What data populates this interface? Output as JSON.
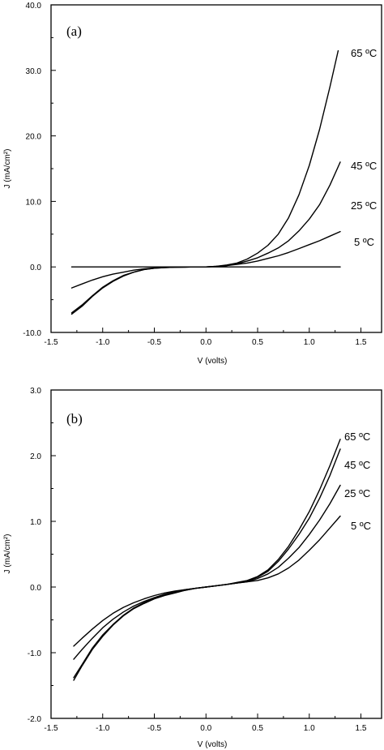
{
  "chart_data": [
    {
      "type": "line",
      "panel_label": "(a)",
      "xlabel": "V (volts)",
      "ylabel": "J (mA/cm²)",
      "xlim": [
        -1.5,
        1.7
      ],
      "ylim": [
        -10,
        40
      ],
      "x_ticks": [
        "-1.5",
        "-1.0",
        "-0.5",
        "0.0",
        "0.5",
        "1.0",
        "1.5"
      ],
      "x_tick_values": [
        -1.5,
        -1.0,
        -0.5,
        0.0,
        0.5,
        1.0,
        1.5
      ],
      "y_ticks": [
        "-10.0",
        "0.0",
        "10.0",
        "20.0",
        "30.0",
        "40.0"
      ],
      "y_tick_values": [
        -10,
        0,
        10,
        20,
        30,
        40
      ],
      "grid": false,
      "series": [
        {
          "name": "65 ºC",
          "x": [
            -1.3,
            -1.2,
            -1.1,
            -1.0,
            -0.9,
            -0.8,
            -0.7,
            -0.6,
            -0.5,
            -0.4,
            -0.3,
            -0.2,
            -0.1,
            0.0,
            0.1,
            0.2,
            0.3,
            0.4,
            0.5,
            0.6,
            0.7,
            0.8,
            0.9,
            1.0,
            1.1,
            1.2,
            1.28
          ],
          "y": [
            -7.2,
            -6.0,
            -4.5,
            -3.2,
            -2.2,
            -1.4,
            -0.8,
            -0.4,
            -0.2,
            -0.1,
            -0.05,
            -0.02,
            0.0,
            0.0,
            0.1,
            0.3,
            0.6,
            1.2,
            2.1,
            3.3,
            5.0,
            7.5,
            11.0,
            15.5,
            21.0,
            27.5,
            33.0
          ]
        },
        {
          "name": "45 ºC",
          "x": [
            -1.3,
            -1.2,
            -1.1,
            -1.0,
            -0.9,
            -0.8,
            -0.7,
            -0.6,
            -0.5,
            -0.4,
            -0.3,
            -0.2,
            -0.1,
            0.0,
            0.1,
            0.2,
            0.3,
            0.4,
            0.5,
            0.6,
            0.7,
            0.8,
            0.9,
            1.0,
            1.1,
            1.2,
            1.3
          ],
          "y": [
            -7.0,
            -5.8,
            -4.4,
            -3.1,
            -2.1,
            -1.3,
            -0.8,
            -0.4,
            -0.2,
            -0.1,
            -0.05,
            -0.02,
            0.0,
            0.0,
            0.1,
            0.2,
            0.5,
            0.9,
            1.4,
            2.1,
            2.9,
            4.0,
            5.5,
            7.3,
            9.5,
            12.5,
            16.0
          ]
        },
        {
          "name": "25 ºC",
          "x": [
            -1.3,
            -1.2,
            -1.1,
            -1.0,
            -0.9,
            -0.8,
            -0.7,
            -0.6,
            -0.5,
            -0.4,
            -0.3,
            -0.2,
            -0.1,
            0.0,
            0.1,
            0.2,
            0.3,
            0.4,
            0.5,
            0.6,
            0.7,
            0.8,
            0.9,
            1.0,
            1.1,
            1.2,
            1.3
          ],
          "y": [
            -3.2,
            -2.6,
            -2.0,
            -1.5,
            -1.1,
            -0.8,
            -0.5,
            -0.3,
            -0.15,
            -0.08,
            -0.04,
            -0.02,
            0.0,
            0.0,
            0.08,
            0.2,
            0.4,
            0.6,
            0.9,
            1.3,
            1.7,
            2.2,
            2.8,
            3.4,
            4.0,
            4.7,
            5.4
          ]
        },
        {
          "name": "5 ºC",
          "x": [
            -1.3,
            1.3
          ],
          "y": [
            0.0,
            0.0
          ]
        }
      ]
    },
    {
      "type": "line",
      "panel_label": "(b)",
      "xlabel": "V (volts)",
      "ylabel": "J (mA/cm²)",
      "xlim": [
        -1.5,
        1.7
      ],
      "ylim": [
        -2,
        3
      ],
      "x_ticks": [
        "-1.5",
        "-1.0",
        "-0.5",
        "0.0",
        "0.5",
        "1.0",
        "1.5"
      ],
      "x_tick_values": [
        -1.5,
        -1.0,
        -0.5,
        0.0,
        0.5,
        1.0,
        1.5
      ],
      "y_ticks": [
        "-2.0",
        "-1.0",
        "0.0",
        "1.0",
        "2.0",
        "3.0"
      ],
      "y_tick_values": [
        -2,
        -1,
        0,
        1,
        2,
        3
      ],
      "grid": false,
      "series": [
        {
          "name": "65 ºC",
          "x": [
            -1.28,
            -1.2,
            -1.1,
            -1.0,
            -0.9,
            -0.8,
            -0.7,
            -0.6,
            -0.5,
            -0.4,
            -0.3,
            -0.2,
            -0.1,
            0.0,
            0.1,
            0.2,
            0.3,
            0.4,
            0.5,
            0.6,
            0.7,
            0.8,
            0.9,
            1.0,
            1.1,
            1.2,
            1.3
          ],
          "y": [
            -1.42,
            -1.2,
            -0.95,
            -0.75,
            -0.58,
            -0.44,
            -0.33,
            -0.25,
            -0.18,
            -0.13,
            -0.09,
            -0.05,
            -0.02,
            0.0,
            0.02,
            0.04,
            0.07,
            0.1,
            0.16,
            0.26,
            0.42,
            0.62,
            0.87,
            1.15,
            1.48,
            1.85,
            2.25
          ]
        },
        {
          "name": "45 ºC",
          "x": [
            -1.28,
            -1.2,
            -1.1,
            -1.0,
            -0.9,
            -0.8,
            -0.7,
            -0.6,
            -0.5,
            -0.4,
            -0.3,
            -0.2,
            -0.1,
            0.0,
            0.1,
            0.2,
            0.3,
            0.4,
            0.5,
            0.6,
            0.7,
            0.8,
            0.9,
            1.0,
            1.1,
            1.2,
            1.3
          ],
          "y": [
            -1.38,
            -1.18,
            -0.93,
            -0.73,
            -0.57,
            -0.43,
            -0.32,
            -0.24,
            -0.17,
            -0.12,
            -0.08,
            -0.05,
            -0.02,
            0.0,
            0.02,
            0.04,
            0.06,
            0.09,
            0.15,
            0.24,
            0.39,
            0.58,
            0.8,
            1.05,
            1.35,
            1.7,
            2.1
          ]
        },
        {
          "name": "25 ºC",
          "x": [
            -1.28,
            -1.2,
            -1.1,
            -1.0,
            -0.9,
            -0.8,
            -0.7,
            -0.6,
            -0.5,
            -0.4,
            -0.3,
            -0.2,
            -0.1,
            0.0,
            0.1,
            0.2,
            0.3,
            0.4,
            0.5,
            0.6,
            0.7,
            0.8,
            0.9,
            1.0,
            1.1,
            1.2,
            1.3
          ],
          "y": [
            -1.1,
            -0.95,
            -0.78,
            -0.62,
            -0.49,
            -0.38,
            -0.29,
            -0.22,
            -0.16,
            -0.11,
            -0.07,
            -0.04,
            -0.02,
            0.0,
            0.02,
            0.04,
            0.06,
            0.08,
            0.13,
            0.2,
            0.3,
            0.44,
            0.6,
            0.8,
            1.02,
            1.27,
            1.55
          ]
        },
        {
          "name": "5 ºC",
          "x": [
            -1.28,
            -1.2,
            -1.1,
            -1.0,
            -0.9,
            -0.8,
            -0.7,
            -0.6,
            -0.5,
            -0.4,
            -0.3,
            -0.2,
            -0.1,
            0.0,
            0.1,
            0.2,
            0.3,
            0.4,
            0.5,
            0.6,
            0.7,
            0.8,
            0.9,
            1.0,
            1.1,
            1.2,
            1.3
          ],
          "y": [
            -0.9,
            -0.78,
            -0.64,
            -0.51,
            -0.4,
            -0.31,
            -0.24,
            -0.18,
            -0.13,
            -0.09,
            -0.06,
            -0.04,
            -0.02,
            0.0,
            0.02,
            0.04,
            0.06,
            0.08,
            0.1,
            0.14,
            0.2,
            0.29,
            0.41,
            0.56,
            0.72,
            0.9,
            1.08
          ]
        }
      ]
    }
  ]
}
